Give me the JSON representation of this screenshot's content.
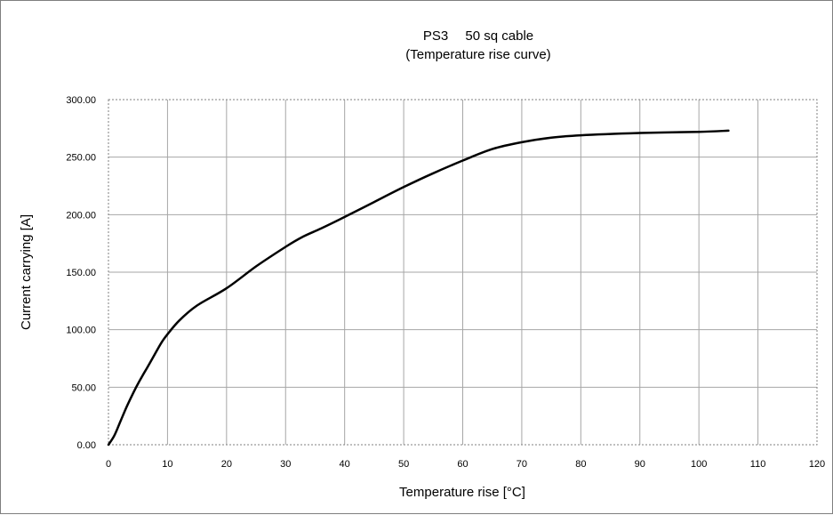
{
  "chart_data": {
    "type": "line",
    "title": "PS3　 50 sq cable",
    "subtitle": "(Temperature rise curve)",
    "xlabel": "Temperature rise [°C]",
    "ylabel": "Current carrying [A]",
    "xlim": [
      0,
      120
    ],
    "ylim": [
      0,
      300
    ],
    "xticks": [
      "0",
      "10",
      "20",
      "30",
      "40",
      "50",
      "60",
      "70",
      "80",
      "90",
      "100",
      "110",
      "120"
    ],
    "yticks": [
      "0.00",
      "50.00",
      "100.00",
      "150.00",
      "200.00",
      "250.00",
      "300.00"
    ],
    "grid": true,
    "legend": "none",
    "series": [
      {
        "color": "#000000",
        "x": [
          0,
          1,
          2,
          3,
          4,
          5,
          6,
          7,
          8,
          9,
          10,
          12,
          15,
          20,
          25,
          30,
          33,
          36,
          40,
          45,
          50,
          55,
          60,
          65,
          70,
          75,
          80,
          90,
          100,
          105
        ],
        "y": [
          0,
          8,
          20,
          32,
          43,
          53,
          62,
          71,
          80,
          89,
          96,
          108,
          121,
          136,
          155,
          172,
          181,
          188,
          198,
          211,
          224,
          236,
          247,
          257,
          263,
          267,
          269,
          271,
          272,
          273
        ]
      }
    ]
  }
}
